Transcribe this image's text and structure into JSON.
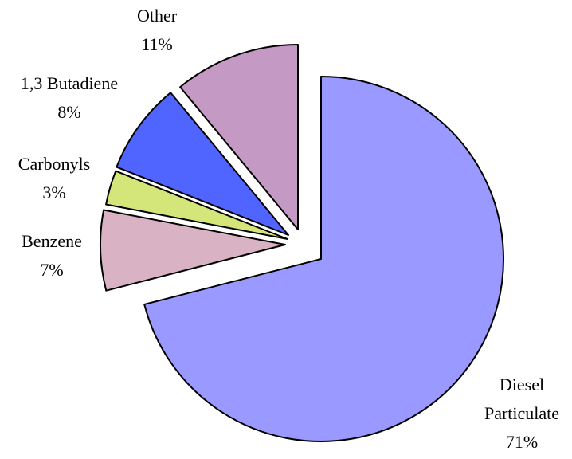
{
  "chart_data": {
    "type": "pie",
    "categories": [
      "Diesel Particulate",
      "Benzene",
      "Carbonyls",
      "1,3 Butadiene",
      "Other"
    ],
    "values": [
      71,
      7,
      3,
      8,
      11
    ],
    "value_labels": [
      "71%",
      "7%",
      "3%",
      "8%",
      "11%"
    ],
    "label_lines": [
      [
        "Diesel",
        "Particulate"
      ],
      [
        "Benzene"
      ],
      [
        "Carbonyls"
      ],
      [
        "1,3 Butadiene"
      ],
      [
        "Other"
      ]
    ],
    "colors": [
      "#9999ff",
      "#d9b3c3",
      "#d4e67a",
      "#5064ff",
      "#c49ac4"
    ],
    "legend": "none",
    "exploded": true
  }
}
